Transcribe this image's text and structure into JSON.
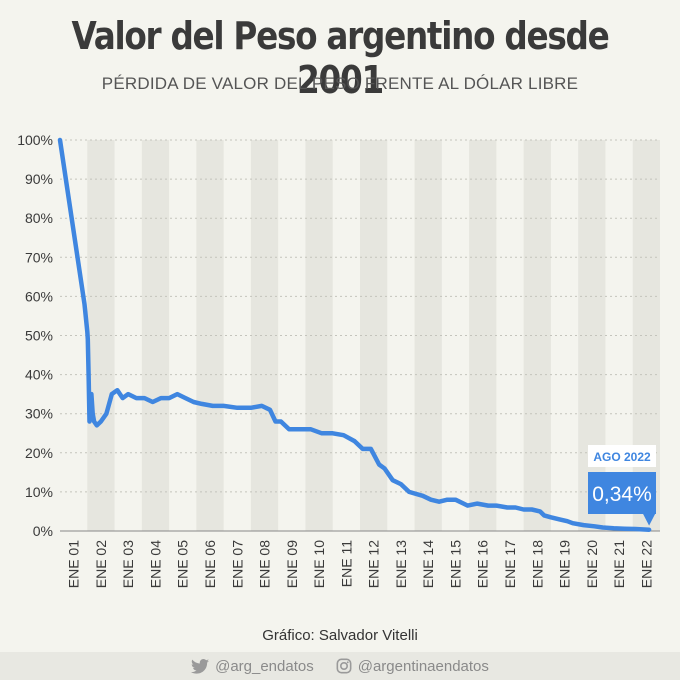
{
  "title": "Valor del Peso argentino desde 2001",
  "subtitle": "PÉRDIDA DE VALOR DEL PESO FRENTE AL DÓLAR LIBRE",
  "credit": "Gráfico: Salvador Vitelli",
  "footer": {
    "twitter": "@arg_endatos",
    "instagram": "@argentinaendatos",
    "twitter_icon": "twitter-icon",
    "instagram_icon": "instagram-icon"
  },
  "colors": {
    "line": "#3f86e0",
    "callout": "#3f86e0",
    "shade": "#e6e6df",
    "background": "#f4f4ee"
  },
  "callout": {
    "date": "AGO 2022",
    "value": "0,34%"
  },
  "chart_data": {
    "type": "line",
    "title": "Valor del Peso argentino desde 2001",
    "subtitle": "PÉRDIDA DE VALOR DEL PESO FRENTE AL DÓLAR LIBRE",
    "ylim": [
      0,
      100
    ],
    "y_ticks": [
      "0%",
      "10%",
      "20%",
      "30%",
      "40%",
      "50%",
      "60%",
      "70%",
      "80%",
      "90%",
      "100%"
    ],
    "x_ticks": [
      "ENE 01",
      "ENE 02",
      "ENE 03",
      "ENE 04",
      "ENE 05",
      "ENE 06",
      "ENE 07",
      "ENE 08",
      "ENE 09",
      "ENE 10",
      "ENE 11",
      "ENE 12",
      "ENE 13",
      "ENE 14",
      "ENE 15",
      "ENE 16",
      "ENE 17",
      "ENE 18",
      "ENE 19",
      "ENE 20",
      "ENE 21",
      "ENE 22"
    ],
    "grid": true,
    "series": [
      {
        "x": [
          2001.0,
          2001.9,
          2002.0,
          2002.02,
          2002.05,
          2002.08,
          2002.1,
          2002.15,
          2002.2,
          2002.25,
          2002.35,
          2002.5,
          2002.7,
          2002.9,
          2003.1,
          2003.3,
          2003.5,
          2003.8,
          2004.1,
          2004.4,
          2004.7,
          2005.0,
          2005.3,
          2005.6,
          2005.9,
          2006.2,
          2006.6,
          2007.0,
          2007.5,
          2008.0,
          2008.4,
          2008.7,
          2008.9,
          2009.1,
          2009.4,
          2009.8,
          2010.2,
          2010.6,
          2011.0,
          2011.4,
          2011.8,
          2012.1,
          2012.4,
          2012.7,
          2012.9,
          2013.2,
          2013.5,
          2013.8,
          2014.05,
          2014.3,
          2014.6,
          2014.9,
          2015.2,
          2015.5,
          2015.8,
          2015.95,
          2016.3,
          2016.7,
          2017.0,
          2017.4,
          2017.7,
          2018.0,
          2018.3,
          2018.6,
          2018.75,
          2019.0,
          2019.3,
          2019.6,
          2019.8,
          2020.2,
          2020.6,
          2020.9,
          2021.3,
          2021.7,
          2022.1,
          2022.6
        ],
        "y": [
          100,
          58,
          51,
          49,
          40,
          28,
          29,
          35,
          30,
          28,
          27,
          28,
          30,
          35,
          36,
          34,
          35,
          34,
          34,
          33,
          34,
          34,
          35,
          34,
          33,
          32.5,
          32,
          32,
          31.5,
          31.5,
          32,
          31,
          28,
          28,
          26,
          26,
          26,
          25,
          25,
          24.5,
          23,
          21,
          21,
          17,
          16,
          13,
          12,
          10,
          9.5,
          9,
          8,
          7.5,
          8,
          8,
          7,
          6.5,
          7,
          6.5,
          6.5,
          6,
          6,
          5.5,
          5.5,
          5,
          4,
          3.5,
          3,
          2.5,
          2,
          1.5,
          1.2,
          0.9,
          0.7,
          0.6,
          0.5,
          0.34
        ]
      }
    ]
  }
}
